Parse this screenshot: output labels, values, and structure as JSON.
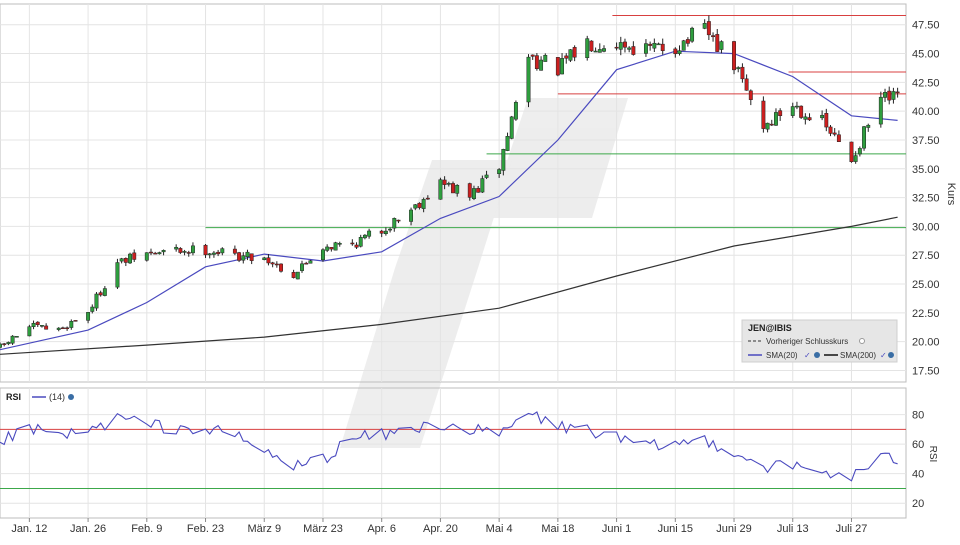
{
  "chart_data": [
    {
      "type": "candlestick",
      "title": "",
      "ylabel": "Kurs",
      "ylim": [
        16.5,
        49.3
      ],
      "y_ticks": [
        17.5,
        20.0,
        22.5,
        25.0,
        27.5,
        30.0,
        32.5,
        35.0,
        37.5,
        40.0,
        42.5,
        45.0,
        47.5
      ],
      "y_tick_labels": [
        "17.50",
        "20.00",
        "22.50",
        "25.00",
        "27.50",
        "30.00",
        "32.50",
        "35.00",
        "37.50",
        "40.00",
        "42.50",
        "45.00",
        "47.50"
      ],
      "x_range": [
        "2026-01-05",
        "2026-08-09"
      ],
      "x_ticks": [
        "2026-01-12",
        "2026-01-26",
        "2026-02-09",
        "2026-02-23",
        "2026-03-09",
        "2026-03-23",
        "2026-04-06",
        "2026-04-20",
        "2026-05-04",
        "2026-05-18",
        "2026-06-01",
        "2026-06-15",
        "2026-06-29",
        "2026-07-13",
        "2026-07-27"
      ],
      "x_tick_labels": [
        "Jan. 12",
        "Jan. 26",
        "Feb. 9",
        "Feb. 23",
        "März 9",
        "März 23",
        "Apr. 6",
        "Apr. 20",
        "Mai 4",
        "Mai 18",
        "Juni 1",
        "Juni 15",
        "Juni 29",
        "Juli 13",
        "Juli 27"
      ],
      "grid": true,
      "legend_position": "bottom-right",
      "legend": {
        "title": "JEN@IBIS",
        "items": [
          "Vorheriger Schlusskurs",
          "SMA(20)",
          "SMA(200)"
        ]
      },
      "colors": {
        "up": "#2e9e3e",
        "down": "#cc1f1f",
        "sma20": "#4a4abf",
        "sma200": "#333333",
        "support": "#3ca84a",
        "resistance": "#d84040"
      },
      "horizontal_lines": [
        {
          "kind": "support",
          "y": 29.9,
          "from": "2026-02-23"
        },
        {
          "kind": "support",
          "y": 36.3,
          "from": "2026-05-01"
        },
        {
          "kind": "resistance",
          "y": 41.5,
          "from": "2026-05-18"
        },
        {
          "kind": "resistance",
          "y": 43.4,
          "from": "2026-07-12"
        },
        {
          "kind": "resistance",
          "y": 48.3,
          "from": "2026-05-31"
        }
      ],
      "price_series": [
        [
          "2026-01-05",
          19.5
        ],
        [
          "2026-01-12",
          21.3
        ],
        [
          "2026-01-19",
          21.0
        ],
        [
          "2026-01-26",
          22.6
        ],
        [
          "2026-02-02",
          26.8
        ],
        [
          "2026-02-09",
          27.6
        ],
        [
          "2026-02-16",
          27.9
        ],
        [
          "2026-02-23",
          28.0
        ],
        [
          "2026-03-02",
          27.5
        ],
        [
          "2026-03-09",
          27.3
        ],
        [
          "2026-03-16",
          25.8
        ],
        [
          "2026-03-23",
          28.3
        ],
        [
          "2026-03-30",
          28.5
        ],
        [
          "2026-04-06",
          29.7
        ],
        [
          "2026-04-13",
          31.5
        ],
        [
          "2026-04-20",
          33.8
        ],
        [
          "2026-04-27",
          32.6
        ],
        [
          "2026-05-04",
          35.2
        ],
        [
          "2026-05-11",
          44.8
        ],
        [
          "2026-05-18",
          43.6
        ],
        [
          "2026-05-25",
          46.0
        ],
        [
          "2026-06-01",
          46.0
        ],
        [
          "2026-06-08",
          45.3
        ],
        [
          "2026-06-15",
          45.6
        ],
        [
          "2026-06-22",
          47.0
        ],
        [
          "2026-06-29",
          44.0
        ],
        [
          "2026-07-06",
          38.7
        ],
        [
          "2026-07-13",
          40.6
        ],
        [
          "2026-07-20",
          39.0
        ],
        [
          "2026-07-27",
          35.8
        ],
        [
          "2026-08-03",
          41.0
        ]
      ],
      "series": [
        {
          "name": "SMA(20)",
          "x": [
            "2026-01-05",
            "2026-01-26",
            "2026-02-09",
            "2026-02-23",
            "2026-03-09",
            "2026-03-23",
            "2026-04-06",
            "2026-04-20",
            "2026-05-04",
            "2026-05-18",
            "2026-06-01",
            "2026-06-15",
            "2026-06-29",
            "2026-07-13",
            "2026-07-27",
            "2026-08-07"
          ],
          "values": [
            19.3,
            21.0,
            23.4,
            26.5,
            27.6,
            27.0,
            27.8,
            30.7,
            32.6,
            37.5,
            43.6,
            45.2,
            45.0,
            43.0,
            39.6,
            39.2
          ]
        },
        {
          "name": "SMA(200)",
          "x": [
            "2026-01-05",
            "2026-02-09",
            "2026-03-09",
            "2026-04-06",
            "2026-05-04",
            "2026-06-01",
            "2026-06-29",
            "2026-07-27",
            "2026-08-07"
          ],
          "values": [
            18.9,
            19.7,
            20.4,
            21.5,
            22.9,
            25.7,
            28.3,
            30.0,
            30.8
          ]
        }
      ]
    },
    {
      "type": "line",
      "title": "RSI",
      "legend": {
        "title": "RSI",
        "items": [
          "(14)"
        ]
      },
      "ylim": [
        10,
        98
      ],
      "y_ticks": [
        20,
        40,
        60,
        80
      ],
      "y_tick_labels": [
        "20",
        "40",
        "60",
        "80"
      ],
      "ylabel": "RSI",
      "thresholds": [
        {
          "kind": "overbought",
          "y": 70
        },
        {
          "kind": "oversold",
          "y": 30
        }
      ],
      "series": [
        {
          "name": "(14)",
          "x": [
            "2026-01-05",
            "2026-01-12",
            "2026-01-19",
            "2026-01-26",
            "2026-02-02",
            "2026-02-09",
            "2026-02-16",
            "2026-02-23",
            "2026-03-02",
            "2026-03-09",
            "2026-03-16",
            "2026-03-23",
            "2026-03-30",
            "2026-04-06",
            "2026-04-13",
            "2026-04-20",
            "2026-04-27",
            "2026-05-04",
            "2026-05-11",
            "2026-05-18",
            "2026-05-25",
            "2026-06-01",
            "2026-06-08",
            "2026-06-15",
            "2026-06-22",
            "2026-06-29",
            "2026-07-06",
            "2026-07-13",
            "2026-07-20",
            "2026-07-27",
            "2026-08-03"
          ],
          "values": [
            62,
            70,
            66,
            68,
            78,
            73,
            71,
            70,
            66,
            55,
            45,
            50,
            64,
            66,
            70,
            74,
            70,
            66,
            81,
            72,
            70,
            64,
            58,
            60,
            63,
            55,
            45,
            45,
            41,
            38,
            50
          ]
        }
      ]
    }
  ],
  "watermark": "stock-chart-logo"
}
